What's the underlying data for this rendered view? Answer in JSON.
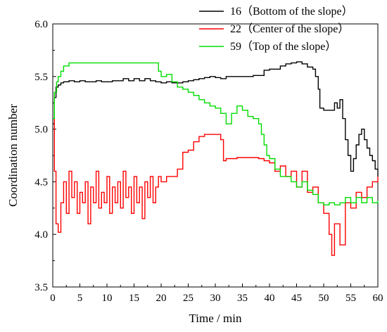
{
  "chart_data": {
    "type": "line",
    "xlabel": "Time / min",
    "ylabel": "Coordination number",
    "xlim": [
      0,
      60
    ],
    "ylim": [
      3.5,
      6.0
    ],
    "x_ticks": [
      "0",
      "5",
      "10",
      "15",
      "20",
      "25",
      "30",
      "35",
      "40",
      "45",
      "50",
      "55",
      "60"
    ],
    "y_ticks": [
      "3.5",
      "4.0",
      "4.5",
      "5.0",
      "5.5",
      "6.0"
    ],
    "grid": false,
    "legend_position": "top-right",
    "series": [
      {
        "name": "16（Bottom of the slope）",
        "color": "#000000",
        "points": [
          [
            0,
            5.05
          ],
          [
            0.3,
            5.3
          ],
          [
            0.6,
            5.4
          ],
          [
            1.0,
            5.42
          ],
          [
            1.5,
            5.44
          ],
          [
            2,
            5.45
          ],
          [
            3,
            5.46
          ],
          [
            4,
            5.45
          ],
          [
            5,
            5.46
          ],
          [
            6,
            5.45
          ],
          [
            7,
            5.45
          ],
          [
            8,
            5.46
          ],
          [
            9,
            5.45
          ],
          [
            10,
            5.45
          ],
          [
            11,
            5.46
          ],
          [
            12,
            5.46
          ],
          [
            13,
            5.48
          ],
          [
            14,
            5.46
          ],
          [
            15,
            5.48
          ],
          [
            16,
            5.46
          ],
          [
            17,
            5.48
          ],
          [
            18,
            5.46
          ],
          [
            19,
            5.45
          ],
          [
            20,
            5.44
          ],
          [
            21,
            5.45
          ],
          [
            22,
            5.44
          ],
          [
            23,
            5.44
          ],
          [
            24,
            5.45
          ],
          [
            25,
            5.46
          ],
          [
            26,
            5.47
          ],
          [
            27,
            5.48
          ],
          [
            28,
            5.49
          ],
          [
            29,
            5.5
          ],
          [
            30,
            5.49
          ],
          [
            31,
            5.48
          ],
          [
            32,
            5.5
          ],
          [
            33,
            5.5
          ],
          [
            34,
            5.5
          ],
          [
            35,
            5.5
          ],
          [
            36,
            5.5
          ],
          [
            37,
            5.51
          ],
          [
            38,
            5.51
          ],
          [
            39,
            5.56
          ],
          [
            40,
            5.57
          ],
          [
            41,
            5.57
          ],
          [
            42,
            5.6
          ],
          [
            43,
            5.62
          ],
          [
            44,
            5.63
          ],
          [
            45,
            5.64
          ],
          [
            46,
            5.62
          ],
          [
            47,
            5.59
          ],
          [
            48,
            5.57
          ],
          [
            48.5,
            5.5
          ],
          [
            49,
            5.38
          ],
          [
            49.3,
            5.2
          ],
          [
            50,
            5.18
          ],
          [
            51,
            5.18
          ],
          [
            52,
            5.25
          ],
          [
            52.5,
            5.2
          ],
          [
            53,
            5.28
          ],
          [
            53.5,
            5.1
          ],
          [
            54,
            4.9
          ],
          [
            54.5,
            4.75
          ],
          [
            55,
            4.6
          ],
          [
            55.5,
            4.72
          ],
          [
            56,
            4.85
          ],
          [
            56.5,
            4.95
          ],
          [
            57,
            5.0
          ],
          [
            57.5,
            4.9
          ],
          [
            58,
            4.82
          ],
          [
            58.5,
            4.75
          ],
          [
            59,
            4.7
          ],
          [
            59.5,
            4.62
          ],
          [
            60,
            4.55
          ]
        ]
      },
      {
        "name": "22（Center of the slope）",
        "color": "#ff0000",
        "points": [
          [
            0,
            5.1
          ],
          [
            0.3,
            4.6
          ],
          [
            0.6,
            4.1
          ],
          [
            1,
            4.02
          ],
          [
            1.5,
            4.3
          ],
          [
            2,
            4.5
          ],
          [
            2.5,
            4.2
          ],
          [
            3,
            4.6
          ],
          [
            3.5,
            4.35
          ],
          [
            4,
            4.5
          ],
          [
            4.5,
            4.2
          ],
          [
            5,
            4.4
          ],
          [
            5.5,
            4.3
          ],
          [
            6,
            4.5
          ],
          [
            6.5,
            4.1
          ],
          [
            7,
            4.45
          ],
          [
            7.5,
            4.3
          ],
          [
            8,
            4.6
          ],
          [
            8.5,
            4.25
          ],
          [
            9,
            4.4
          ],
          [
            9.5,
            4.3
          ],
          [
            10,
            4.55
          ],
          [
            10.5,
            4.2
          ],
          [
            11,
            4.45
          ],
          [
            11.5,
            4.3
          ],
          [
            12,
            4.5
          ],
          [
            12.5,
            4.25
          ],
          [
            13,
            4.6
          ],
          [
            13.5,
            4.35
          ],
          [
            14,
            4.45
          ],
          [
            14.5,
            4.2
          ],
          [
            15,
            4.55
          ],
          [
            15.5,
            4.3
          ],
          [
            16,
            4.45
          ],
          [
            16.5,
            4.15
          ],
          [
            17,
            4.5
          ],
          [
            17.5,
            4.35
          ],
          [
            18,
            4.55
          ],
          [
            18.5,
            4.3
          ],
          [
            19,
            4.45
          ],
          [
            19.5,
            4.55
          ],
          [
            20,
            4.5
          ],
          [
            21,
            4.55
          ],
          [
            22,
            4.55
          ],
          [
            23,
            4.62
          ],
          [
            24,
            4.78
          ],
          [
            25,
            4.8
          ],
          [
            26,
            4.88
          ],
          [
            27,
            4.93
          ],
          [
            28,
            4.95
          ],
          [
            29,
            4.95
          ],
          [
            30,
            4.95
          ],
          [
            31,
            4.9
          ],
          [
            31.5,
            4.7
          ],
          [
            32,
            4.72
          ],
          [
            33,
            4.72
          ],
          [
            34,
            4.73
          ],
          [
            35,
            4.73
          ],
          [
            36,
            4.73
          ],
          [
            37,
            4.73
          ],
          [
            38,
            4.72
          ],
          [
            39,
            4.7
          ],
          [
            40,
            4.68
          ],
          [
            41,
            4.6
          ],
          [
            42,
            4.65
          ],
          [
            43,
            4.55
          ],
          [
            44,
            4.6
          ],
          [
            45,
            4.45
          ],
          [
            46,
            4.6
          ],
          [
            47,
            4.4
          ],
          [
            48,
            4.45
          ],
          [
            49,
            4.3
          ],
          [
            50,
            4.2
          ],
          [
            51,
            4.0
          ],
          [
            51.5,
            3.8
          ],
          [
            52,
            4.1
          ],
          [
            53,
            3.9
          ],
          [
            54,
            4.3
          ],
          [
            55,
            4.25
          ],
          [
            56,
            4.4
          ],
          [
            57,
            4.35
          ],
          [
            58,
            4.45
          ],
          [
            59,
            4.5
          ],
          [
            60,
            4.55
          ]
        ]
      },
      {
        "name": "59（Top of the slope）",
        "color": "#00dd00",
        "points": [
          [
            0,
            5.1
          ],
          [
            0.3,
            5.35
          ],
          [
            0.7,
            5.45
          ],
          [
            1,
            5.5
          ],
          [
            1.5,
            5.55
          ],
          [
            2,
            5.6
          ],
          [
            3,
            5.63
          ],
          [
            5,
            5.63
          ],
          [
            10,
            5.63
          ],
          [
            15,
            5.63
          ],
          [
            19,
            5.63
          ],
          [
            19.5,
            5.55
          ],
          [
            20,
            5.5
          ],
          [
            21,
            5.52
          ],
          [
            22,
            5.45
          ],
          [
            23,
            5.4
          ],
          [
            24,
            5.38
          ],
          [
            25,
            5.35
          ],
          [
            26,
            5.32
          ],
          [
            27,
            5.28
          ],
          [
            28,
            5.25
          ],
          [
            29,
            5.22
          ],
          [
            30,
            5.2
          ],
          [
            31,
            5.15
          ],
          [
            32,
            5.05
          ],
          [
            33,
            5.15
          ],
          [
            34,
            5.22
          ],
          [
            35,
            5.18
          ],
          [
            36,
            5.12
          ],
          [
            37,
            5.1
          ],
          [
            38,
            5.05
          ],
          [
            38.5,
            4.95
          ],
          [
            39,
            4.85
          ],
          [
            39.5,
            4.75
          ],
          [
            40,
            4.72
          ],
          [
            41,
            4.62
          ],
          [
            42,
            4.55
          ],
          [
            43,
            4.55
          ],
          [
            44,
            4.5
          ],
          [
            45,
            4.45
          ],
          [
            46,
            4.5
          ],
          [
            47,
            4.42
          ],
          [
            48,
            4.38
          ],
          [
            49,
            4.3
          ],
          [
            50,
            4.28
          ],
          [
            51,
            4.3
          ],
          [
            52,
            4.28
          ],
          [
            53,
            4.3
          ],
          [
            54,
            4.35
          ],
          [
            55,
            4.3
          ],
          [
            56,
            4.35
          ],
          [
            57,
            4.3
          ],
          [
            58,
            4.35
          ],
          [
            59,
            4.3
          ],
          [
            60,
            4.32
          ]
        ]
      }
    ]
  }
}
